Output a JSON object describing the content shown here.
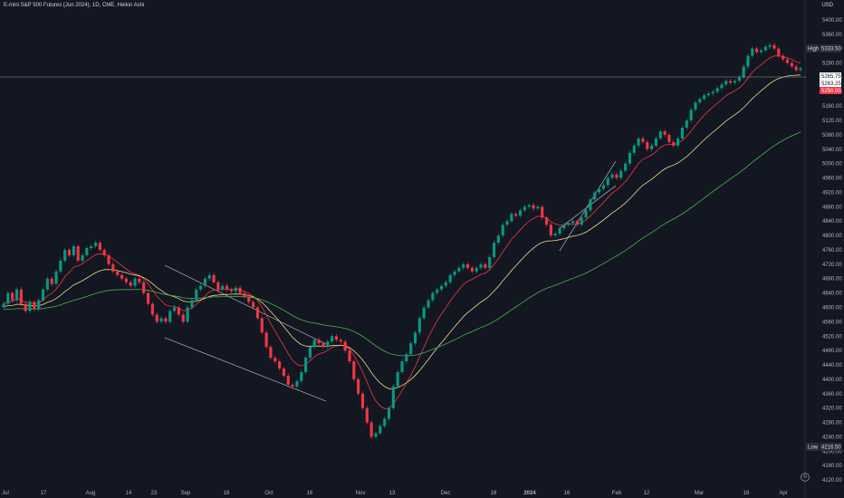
{
  "header": {
    "title": "E-mini S&P 500 Futures (Jun 2024), 1D, CME, Heikin Ashi",
    "currency": "USD"
  },
  "price_axis": {
    "labels": [
      "5400.00",
      "5360.00",
      "5320.00",
      "5280.00",
      "5240.00",
      "5200.00",
      "5160.00",
      "5120.00",
      "5080.00",
      "5040.00",
      "5000.00",
      "4960.00",
      "4920.00",
      "4880.00",
      "4840.00",
      "4800.00",
      "4760.00",
      "4720.00",
      "4680.00",
      "4640.00",
      "4600.00",
      "4560.00",
      "4520.00",
      "4480.00",
      "4440.00",
      "4400.00",
      "4360.00",
      "4320.00",
      "4280.00",
      "4240.00",
      "4200.00",
      "4160.00",
      "4120.00"
    ],
    "high_label": "High",
    "high_value": "5333.50",
    "low_label": "Low",
    "low_value": "4216.50",
    "current_values": [
      "5265.75",
      "5263.25",
      "5250.00"
    ]
  },
  "time_axis": {
    "labels": [
      "Jul",
      "17",
      "Aug",
      "14",
      "23",
      "Sep",
      "18",
      "Oct",
      "16",
      "Nov",
      "13",
      "Dec",
      "18",
      "2024",
      "16",
      "Feb",
      "12",
      "Mar",
      "18",
      "Apr"
    ]
  },
  "colors": {
    "background": "#131722",
    "up": "#089981",
    "down": "#f23645",
    "ma_fast": "#f23645",
    "ma_mid": "#f0d78c",
    "ma_slow": "#4caf50",
    "trendline": "#d1d4dc"
  },
  "chart_data": {
    "type": "candlestick",
    "title": "E-mini S&P 500 Futures (Jun 2024), 1D, CME, Heikin Ashi",
    "ylim": [
      4100,
      5440
    ],
    "closes": [
      4610,
      4640,
      4620,
      4650,
      4610,
      4590,
      4615,
      4595,
      4620,
      4650,
      4680,
      4665,
      4700,
      4730,
      4760,
      4745,
      4770,
      4730,
      4745,
      4765,
      4770,
      4780,
      4760,
      4745,
      4720,
      4700,
      4690,
      4680,
      4670,
      4660,
      4680,
      4670,
      4640,
      4610,
      4580,
      4560,
      4570,
      4560,
      4590,
      4600,
      4580,
      4560,
      4600,
      4620,
      4650,
      4660,
      4680,
      4690,
      4670,
      4650,
      4660,
      4650,
      4645,
      4655,
      4640,
      4630,
      4615,
      4600,
      4570,
      4530,
      4490,
      4460,
      4450,
      4430,
      4410,
      4385,
      4380,
      4395,
      4420,
      4460,
      4490,
      4510,
      4500,
      4490,
      4505,
      4520,
      4510,
      4505,
      4480,
      4450,
      4400,
      4360,
      4320,
      4280,
      4240,
      4250,
      4270,
      4290,
      4320,
      4380,
      4420,
      4450,
      4470,
      4500,
      4530,
      4570,
      4600,
      4620,
      4640,
      4650,
      4660,
      4670,
      4690,
      4700,
      4710,
      4720,
      4710,
      4700,
      4710,
      4720,
      4710,
      4740,
      4780,
      4800,
      4830,
      4840,
      4860,
      4855,
      4870,
      4880,
      4885,
      4875,
      4880,
      4850,
      4830,
      4800,
      4805,
      4820,
      4830,
      4835,
      4840,
      4830,
      4850,
      4870,
      4900,
      4920,
      4930,
      4940,
      4960,
      4970,
      4960,
      4980,
      5000,
      5030,
      5050,
      5070,
      5060,
      5040,
      5050,
      5070,
      5090,
      5080,
      5060,
      5050,
      5070,
      5100,
      5120,
      5150,
      5170,
      5180,
      5190,
      5195,
      5200,
      5210,
      5220,
      5230,
      5225,
      5230,
      5240,
      5270,
      5300,
      5320,
      5310,
      5315,
      5325,
      5330,
      5320,
      5300,
      5290,
      5280,
      5270,
      5260,
      5265
    ]
  }
}
